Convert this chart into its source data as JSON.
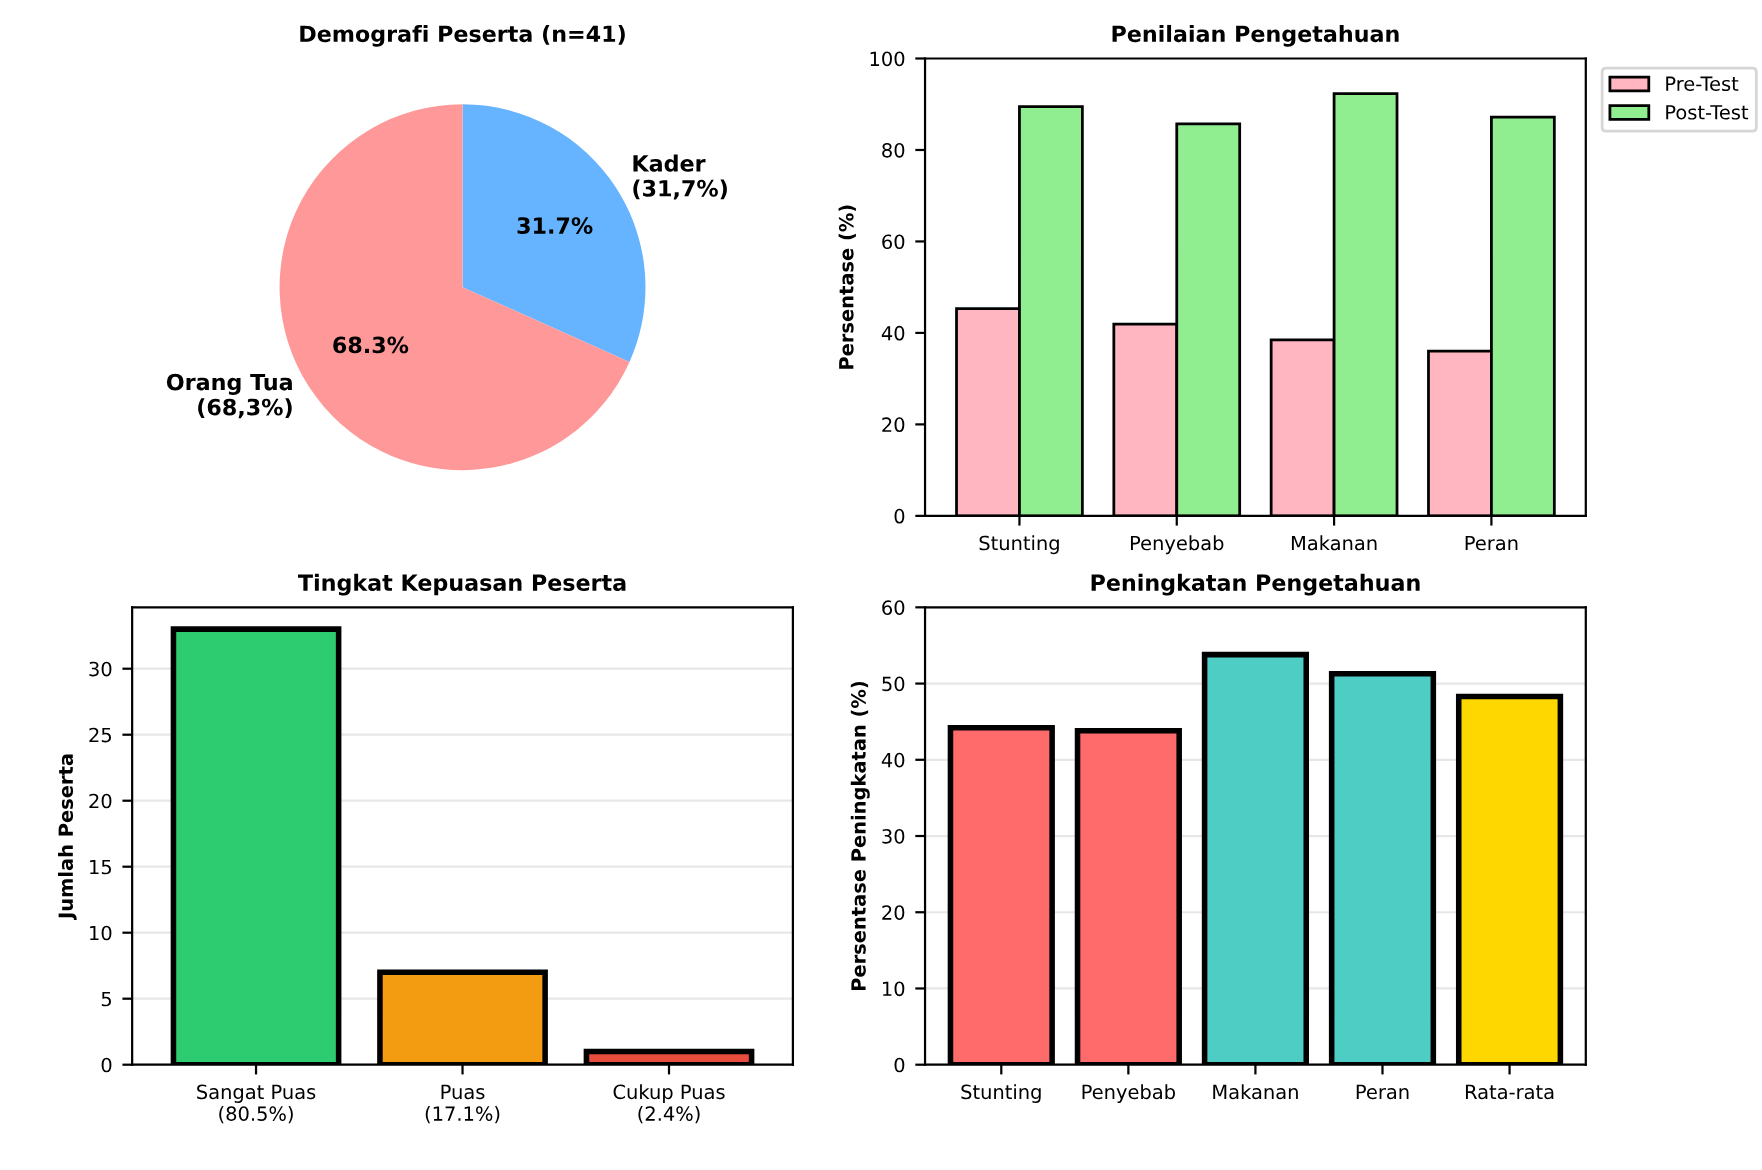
{
  "chart_data": [
    {
      "type": "pie",
      "title": "Demografi Peserta (n=41)",
      "categories": [
        "Kader\n(31,7%)",
        "Orang Tua\n(68,3%)"
      ],
      "values": [
        31.7,
        68.3
      ],
      "colors": [
        "#66b3ff",
        "#ff9999"
      ],
      "value_labels": [
        "31.7%",
        "68.3%"
      ]
    },
    {
      "type": "bar",
      "title": "Penilaian Pengetahuan",
      "ylabel": "Persentase (%)",
      "categories": [
        "Stunting",
        "Penyebab",
        "Makanan",
        "Peran"
      ],
      "series": [
        {
          "name": "Pre-Test",
          "color": "#ffb6c1",
          "values": [
            45.3,
            41.9,
            38.5,
            36.0
          ]
        },
        {
          "name": "Post-Test",
          "color": "#90ee90",
          "values": [
            89.5,
            85.7,
            92.3,
            87.2
          ]
        }
      ],
      "ylim": [
        0,
        100
      ],
      "yticks": [
        0,
        20,
        40,
        60,
        80,
        100
      ],
      "legend": "top right",
      "grid": false
    },
    {
      "type": "bar",
      "title": "Tingkat Kepuasan Peserta",
      "ylabel": "Jumlah Peserta",
      "categories": [
        "Sangat Puas\n(80.5%)",
        "Puas\n(17.1%)",
        "Cukup Puas\n(2.4%)"
      ],
      "values": [
        33,
        7,
        1
      ],
      "colors": [
        "#2ecc71",
        "#f39c12",
        "#e74c3c"
      ],
      "ylim": [
        0,
        34.65
      ],
      "yticks": [
        0,
        5,
        10,
        15,
        20,
        25,
        30
      ],
      "grid": "y"
    },
    {
      "type": "bar",
      "title": "Peningkatan Pengetahuan",
      "ylabel": "Persentase Peningkatan (%)",
      "categories": [
        "Stunting",
        "Penyebab",
        "Makanan",
        "Peran",
        "Rata-rata"
      ],
      "values": [
        44.2,
        43.8,
        53.8,
        51.3,
        48.3
      ],
      "colors": [
        "#ff6b6b",
        "#ff6b6b",
        "#4ecdc4",
        "#4ecdc4",
        "#ffd700"
      ],
      "ylim": [
        0,
        60
      ],
      "yticks": [
        0,
        10,
        20,
        30,
        40,
        50,
        60
      ],
      "grid": "y"
    }
  ]
}
